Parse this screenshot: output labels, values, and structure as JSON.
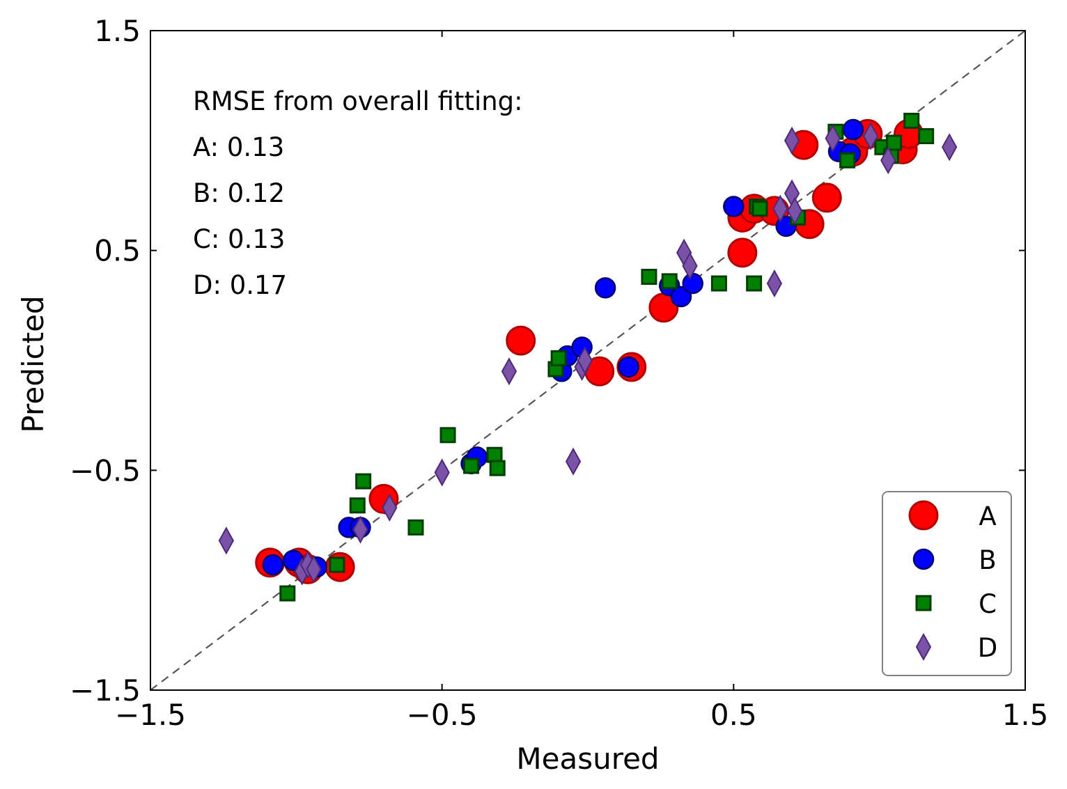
{
  "chart_data": {
    "type": "scatter",
    "xlabel": "Measured",
    "ylabel": "Predicted",
    "xlim": [
      -1.5,
      1.5
    ],
    "ylim": [
      -1.5,
      1.5
    ],
    "xticks": [
      -1.5,
      -0.5,
      0.5,
      1.5
    ],
    "yticks": [
      -1.5,
      -0.5,
      0.5,
      1.5
    ],
    "xtick_labels": [
      "−1.5",
      "−0.5",
      "0.5",
      "1.5"
    ],
    "ytick_labels": [
      "−1.5",
      "−0.5",
      "0.5",
      "1.5"
    ],
    "grid": false,
    "reference_line": {
      "style": "dashed",
      "color": "#555555",
      "from": [
        -1.5,
        -1.5
      ],
      "to": [
        1.5,
        1.5
      ]
    },
    "annotation": {
      "heading": "RMSE from overall fitting:",
      "lines": [
        "A: 0.13",
        "B: 0.12",
        "C: 0.13",
        "D: 0.17"
      ]
    },
    "legend": {
      "placement": "bottom-right"
    },
    "series": [
      {
        "name": "A",
        "marker": "circle-large",
        "fill": "#ff0000",
        "edge": "#b00000",
        "points": [
          [
            -1.09,
            -0.92
          ],
          [
            -0.99,
            -0.92
          ],
          [
            -0.96,
            -0.95
          ],
          [
            -0.85,
            -0.94
          ],
          [
            -0.7,
            -0.63
          ],
          [
            -0.23,
            0.09
          ],
          [
            0.04,
            -0.05
          ],
          [
            0.15,
            -0.03
          ],
          [
            0.26,
            0.24
          ],
          [
            0.53,
            0.49
          ],
          [
            0.53,
            0.65
          ],
          [
            0.57,
            0.69
          ],
          [
            0.64,
            0.68
          ],
          [
            0.74,
            0.98
          ],
          [
            0.76,
            0.62
          ],
          [
            0.82,
            0.74
          ],
          [
            0.91,
            0.95
          ],
          [
            0.96,
            1.03
          ],
          [
            1.08,
            0.96
          ],
          [
            1.1,
            1.03
          ]
        ]
      },
      {
        "name": "B",
        "marker": "circle",
        "fill": "#0000ff",
        "edge": "#00006e",
        "points": [
          [
            -1.08,
            -0.93
          ],
          [
            -1.01,
            -0.91
          ],
          [
            -0.93,
            -0.94
          ],
          [
            -0.82,
            -0.76
          ],
          [
            -0.78,
            -0.76
          ],
          [
            -0.4,
            -0.47
          ],
          [
            -0.38,
            -0.44
          ],
          [
            -0.09,
            -0.05
          ],
          [
            -0.07,
            0.02
          ],
          [
            -0.02,
            0.06
          ],
          [
            0.06,
            0.33
          ],
          [
            0.14,
            -0.03
          ],
          [
            0.28,
            0.34
          ],
          [
            0.32,
            0.29
          ],
          [
            0.36,
            0.35
          ],
          [
            0.5,
            0.7
          ],
          [
            0.68,
            0.61
          ],
          [
            0.86,
            0.95
          ],
          [
            0.9,
            0.94
          ],
          [
            0.91,
            1.05
          ]
        ]
      },
      {
        "name": "C",
        "marker": "square",
        "fill": "#008000",
        "edge": "#003d00",
        "points": [
          [
            -1.03,
            -1.06
          ],
          [
            -0.86,
            -0.93
          ],
          [
            -0.79,
            -0.66
          ],
          [
            -0.77,
            -0.55
          ],
          [
            -0.59,
            -0.76
          ],
          [
            -0.48,
            -0.34
          ],
          [
            -0.4,
            -0.48
          ],
          [
            -0.32,
            -0.43
          ],
          [
            -0.31,
            -0.49
          ],
          [
            -0.11,
            -0.04
          ],
          [
            -0.1,
            0.01
          ],
          [
            0.21,
            0.38
          ],
          [
            0.28,
            0.36
          ],
          [
            0.45,
            0.35
          ],
          [
            0.57,
            0.35
          ],
          [
            0.58,
            0.7
          ],
          [
            0.59,
            0.69
          ],
          [
            0.72,
            0.65
          ],
          [
            0.85,
            1.04
          ],
          [
            0.89,
            0.91
          ],
          [
            1.01,
            0.97
          ],
          [
            1.04,
            0.93
          ],
          [
            1.05,
            0.99
          ],
          [
            1.11,
            1.09
          ],
          [
            1.16,
            1.02
          ]
        ]
      },
      {
        "name": "D",
        "marker": "thin-diamond",
        "fill": "#7b52a8",
        "edge": "#4b2a78",
        "points": [
          [
            -1.24,
            -0.82
          ],
          [
            -0.98,
            -0.96
          ],
          [
            -0.96,
            -0.93
          ],
          [
            -0.94,
            -0.95
          ],
          [
            -0.78,
            -0.77
          ],
          [
            -0.68,
            -0.67
          ],
          [
            -0.5,
            -0.51
          ],
          [
            -0.27,
            -0.05
          ],
          [
            -0.05,
            -0.46
          ],
          [
            -0.02,
            -0.03
          ],
          [
            -0.01,
            0.0
          ],
          [
            0.33,
            0.49
          ],
          [
            0.35,
            0.43
          ],
          [
            0.64,
            0.35
          ],
          [
            0.66,
            0.69
          ],
          [
            0.7,
            1.0
          ],
          [
            0.7,
            0.76
          ],
          [
            0.71,
            0.68
          ],
          [
            0.84,
            1.01
          ],
          [
            0.97,
            1.02
          ],
          [
            1.03,
            0.91
          ],
          [
            1.24,
            0.97
          ]
        ]
      }
    ]
  }
}
